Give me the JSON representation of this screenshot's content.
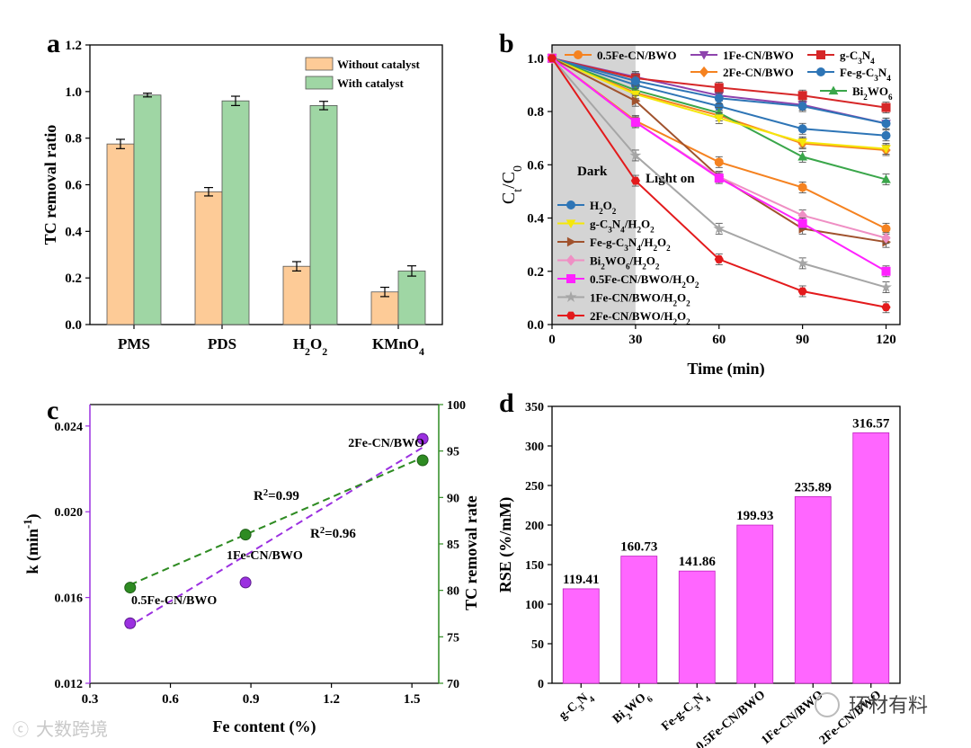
{
  "chart_data": [
    {
      "panel": "a",
      "type": "bar",
      "categories": [
        "PMS",
        "PDS",
        "H₂O₂",
        "KMnO₄"
      ],
      "series": [
        {
          "name": "Without catalyst",
          "color": "#fdcb97",
          "values": [
            0.775,
            0.57,
            0.25,
            0.14
          ],
          "errors": [
            0.02,
            0.018,
            0.02,
            0.02
          ]
        },
        {
          "name": "With catalyst",
          "color": "#9fd6a4",
          "values": [
            0.985,
            0.96,
            0.94,
            0.23
          ],
          "errors": [
            0.008,
            0.02,
            0.018,
            0.022
          ]
        }
      ],
      "ylabel": "TC removal ratio",
      "ylim": [
        0,
        1.2
      ],
      "yticks": [
        "0.0",
        "0.2",
        "0.4",
        "0.6",
        "0.8",
        "1.0",
        "1.2"
      ]
    },
    {
      "panel": "b",
      "type": "line",
      "xlabel": "Time (min)",
      "ylabel": "Ct/C0",
      "xlim": [
        0,
        125
      ],
      "ylim": [
        0,
        1.05
      ],
      "xticks": [
        "0",
        "30",
        "60",
        "90",
        "120"
      ],
      "yticks": [
        "0.0",
        "0.2",
        "0.4",
        "0.6",
        "0.8",
        "1.0"
      ],
      "dark_label": "Dark",
      "light_label": "Light on",
      "x": [
        0,
        30,
        60,
        90,
        120
      ],
      "series": [
        {
          "name": "0.5Fe-CN/BWO",
          "color": "#f58220",
          "marker": "circle",
          "values": [
            1.0,
            0.765,
            0.61,
            0.515,
            0.36
          ]
        },
        {
          "name": "1Fe-CN/BWO",
          "color": "#8e44ad",
          "marker": "triangle-down",
          "values": [
            1.0,
            0.93,
            0.86,
            0.825,
            0.755
          ]
        },
        {
          "name": "g-C₃N₄",
          "color": "#d62728",
          "marker": "square",
          "values": [
            1.0,
            0.925,
            0.89,
            0.86,
            0.815
          ]
        },
        {
          "name": "2Fe-CN/BWO",
          "color": "#f58220",
          "marker": "diamond",
          "values": [
            1.0,
            0.87,
            0.785,
            0.68,
            0.655
          ]
        },
        {
          "name": "Fe-g-C₃N₄",
          "color": "#2e75b6",
          "marker": "circle",
          "values": [
            1.0,
            0.9,
            0.82,
            0.735,
            0.71
          ]
        },
        {
          "name": "Bi₂WO₆",
          "color": "#3aa64a",
          "marker": "triangle-up",
          "values": [
            1.0,
            0.88,
            0.795,
            0.63,
            0.545
          ]
        },
        {
          "name": "H₂O₂",
          "color": "#2e75b6",
          "marker": "circle",
          "values": [
            1.0,
            0.915,
            0.85,
            0.82,
            0.755
          ]
        },
        {
          "name": "g-C₃N₄/H₂O₂",
          "color": "#f5e70a",
          "marker": "triangle-down",
          "values": [
            1.0,
            0.865,
            0.775,
            0.685,
            0.66
          ]
        },
        {
          "name": "Fe-g-C₃N₄/H₂O₂",
          "color": "#a0522d",
          "marker": "triangle-right",
          "values": [
            1.0,
            0.84,
            0.555,
            0.36,
            0.31
          ]
        },
        {
          "name": "Bi₂WO₆/H₂O₂",
          "color": "#ef8fc4",
          "marker": "diamond",
          "values": [
            1.0,
            0.76,
            0.555,
            0.41,
            0.325
          ]
        },
        {
          "name": "0.5Fe-CN/BWO/H₂O₂",
          "color": "#ff22ff",
          "marker": "square",
          "values": [
            1.0,
            0.76,
            0.55,
            0.38,
            0.2
          ]
        },
        {
          "name": "1Fe-CN/BWO/H₂O₂",
          "color": "#a6a6a6",
          "marker": "star",
          "values": [
            1.0,
            0.635,
            0.36,
            0.23,
            0.14
          ]
        },
        {
          "name": "2Fe-CN/BWO/H₂O₂",
          "color": "#e31a1c",
          "marker": "hexagon",
          "values": [
            1.0,
            0.54,
            0.245,
            0.125,
            0.065
          ]
        }
      ]
    },
    {
      "panel": "c",
      "type": "scatter",
      "xlabel": "Fe content (%)",
      "ylabel_left": "k (min⁻¹)",
      "ylabel_right": "TC removal rate",
      "xlim": [
        0.3,
        1.6
      ],
      "ylim_left": [
        0.012,
        0.025
      ],
      "ylim_right": [
        70,
        100
      ],
      "xticks": [
        "0.3",
        "0.6",
        "0.9",
        "1.2",
        "1.5"
      ],
      "yticks_left": [
        "0.012",
        "0.016",
        "0.020",
        "0.024"
      ],
      "yticks_right": [
        "70",
        "75",
        "80",
        "85",
        "90",
        "95",
        "100"
      ],
      "points": [
        {
          "label": "0.5Fe-CN/BWO",
          "x": 0.45,
          "k": 0.0148,
          "tc": 80.3
        },
        {
          "label": "1Fe-CN/BWO",
          "x": 0.88,
          "k": 0.0167,
          "tc": 86.0
        },
        {
          "label": "2Fe-CN/BWO",
          "x": 1.54,
          "k": 0.0234,
          "tc": 94.0
        }
      ],
      "fit_k": {
        "label": "R²=0.96",
        "color": "#9b30e0",
        "x": [
          0.45,
          1.54
        ],
        "y": [
          0.015,
          0.023
        ]
      },
      "fit_tc": {
        "label": "R²=0.99",
        "color": "#2e8b22",
        "x": [
          0.45,
          1.54
        ],
        "y": [
          80.6,
          94.3
        ]
      }
    },
    {
      "panel": "d",
      "type": "bar",
      "ylabel": "RSE (%/mM)",
      "ylim": [
        0,
        350
      ],
      "yticks": [
        "0",
        "50",
        "100",
        "150",
        "200",
        "250",
        "300",
        "350"
      ],
      "color": "#ff66ff",
      "categories": [
        "g-C₃N₄",
        "Bi₂WO₆",
        "Fe-g-C₃N₄",
        "0.5Fe-CN/BWO",
        "1Fe-CN/BWO",
        "2Fe-CN/BWO"
      ],
      "values": [
        119.41,
        160.73,
        141.86,
        199.93,
        235.89,
        316.57
      ],
      "value_labels": [
        "119.41",
        "160.73",
        "141.86",
        "199.93",
        "235.89",
        "316.57"
      ]
    }
  ],
  "panel_labels": {
    "a": "a",
    "b": "b",
    "c": "c",
    "d": "d"
  },
  "watermarks": {
    "left": "大数跨境",
    "right": "环材有料"
  }
}
